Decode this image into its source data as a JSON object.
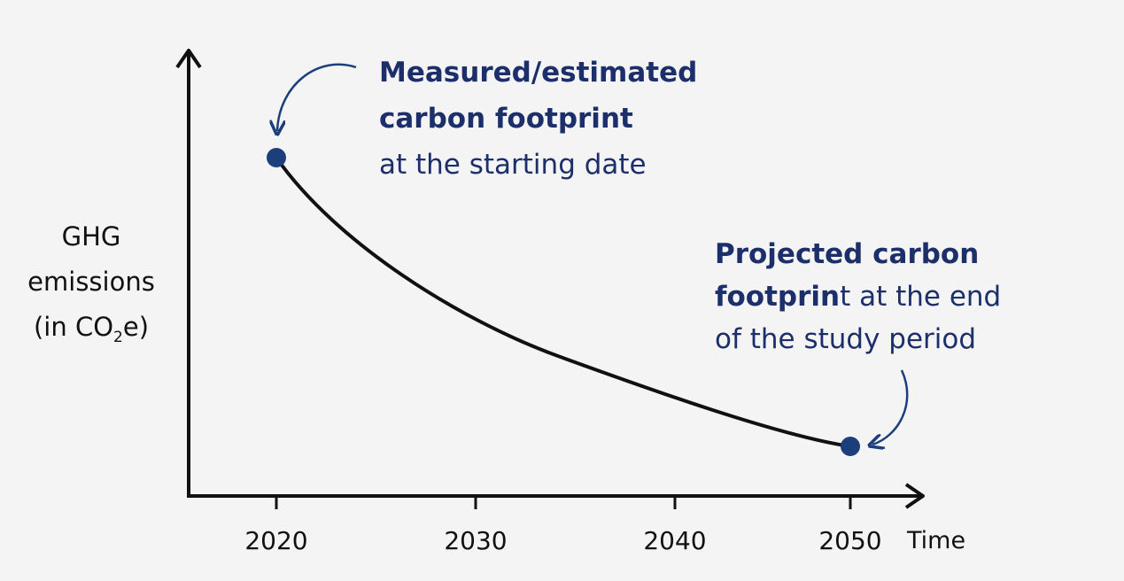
{
  "chart_data": {
    "type": "line",
    "x": [
      2020,
      2050
    ],
    "x_ticks": [
      "2020",
      "2030",
      "2040",
      "2050"
    ],
    "xlabel": "Time",
    "ylabel_lines": [
      "GHG",
      "emissions",
      "(in CO",
      "2",
      "e)"
    ],
    "y_axis_ticks": "none",
    "series": [
      {
        "points_marked": [
          "2020",
          "2050"
        ],
        "shape": "decreasing convex curve from high at 2020 to low at 2050"
      }
    ],
    "annotations": {
      "start": {
        "bold_lines": [
          "Measured/estimated",
          "carbon footprint"
        ],
        "normal_lines": [
          "at the starting date"
        ]
      },
      "end": {
        "bold_line1": "Projected carbon",
        "bold_line2_part": "footprin",
        "normal_line2_part": "t at the end",
        "normal_line3": "of the study period"
      }
    },
    "grid": false
  },
  "colors": {
    "curve": "#111111",
    "marker": "#1c3f7c",
    "annotation_text": "#1c2f6b",
    "axis": "#111111",
    "background": "#f4f4f4"
  }
}
